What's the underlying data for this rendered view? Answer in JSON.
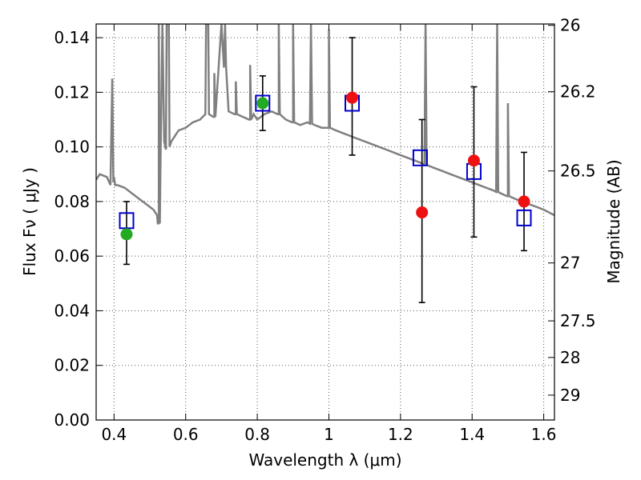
{
  "chart_data": {
    "type": "scatter",
    "xlabel": "Wavelength  λ (μm)",
    "ylabel": "Flux  Fν  ( μJy )",
    "ylabel_right": "Magnitude (AB)",
    "xlim": [
      0.35,
      1.63
    ],
    "ylim": [
      0.0,
      0.145
    ],
    "grid": true,
    "x_ticks": [
      0.4,
      0.6,
      0.8,
      1.0,
      1.2,
      1.4,
      1.6
    ],
    "x_tick_labels": [
      "0.4",
      "0.6",
      "0.8",
      "1",
      "1.2",
      "1.4",
      "1.6"
    ],
    "y_ticks": [
      0.0,
      0.02,
      0.04,
      0.06,
      0.08,
      0.1,
      0.12,
      0.14
    ],
    "y_tick_labels": [
      "0.00",
      "0.02",
      "0.04",
      "0.06",
      "0.08",
      "0.10",
      "0.12",
      "0.14"
    ],
    "right_ticks": [
      {
        "label": "26",
        "flux": 0.1445
      },
      {
        "label": "26.2",
        "flux": 0.1202
      },
      {
        "label": "26.5",
        "flux": 0.0912
      },
      {
        "label": "27",
        "flux": 0.0575
      },
      {
        "label": "27.5",
        "flux": 0.0363
      },
      {
        "label": "28",
        "flux": 0.0229
      },
      {
        "label": "29",
        "flux": 0.0091
      }
    ],
    "model_spectrum": {
      "color": "#808080",
      "x": [
        0.35,
        0.36,
        0.38,
        0.39,
        0.395,
        0.398,
        0.4,
        0.403,
        0.41,
        0.43,
        0.45,
        0.47,
        0.49,
        0.51,
        0.52,
        0.525,
        0.53,
        0.535,
        0.54,
        0.545,
        0.55,
        0.555,
        0.56,
        0.57,
        0.58,
        0.6,
        0.62,
        0.64,
        0.655,
        0.66,
        0.665,
        0.68,
        0.7,
        0.72,
        0.74,
        0.76,
        0.78,
        0.79,
        0.8,
        0.82,
        0.84,
        0.86,
        0.88,
        0.9,
        0.92,
        0.94,
        0.96,
        0.98,
        1.0,
        1.02,
        1.04,
        1.06,
        1.08,
        1.1,
        1.12,
        1.14,
        1.16,
        1.18,
        1.2,
        1.22,
        1.24,
        1.26,
        1.28,
        1.3,
        1.32,
        1.34,
        1.36,
        1.38,
        1.4,
        1.42,
        1.44,
        1.46,
        1.48,
        1.5,
        1.52,
        1.54,
        1.56,
        1.58,
        1.6,
        1.63
      ],
      "y": [
        0.088,
        0.09,
        0.089,
        0.086,
        0.125,
        0.087,
        0.089,
        0.086,
        0.086,
        0.085,
        0.083,
        0.081,
        0.079,
        0.077,
        0.075,
        0.072,
        0.096,
        0.145,
        0.102,
        0.099,
        0.145,
        0.1,
        0.102,
        0.104,
        0.106,
        0.107,
        0.109,
        0.11,
        0.112,
        0.145,
        0.112,
        0.111,
        0.145,
        0.113,
        0.112,
        0.111,
        0.11,
        0.112,
        0.11,
        0.112,
        0.113,
        0.112,
        0.11,
        0.109,
        0.108,
        0.109,
        0.108,
        0.107,
        0.107,
        0.106,
        0.105,
        0.104,
        0.103,
        0.102,
        0.101,
        0.1,
        0.099,
        0.098,
        0.097,
        0.096,
        0.095,
        0.094,
        0.093,
        0.092,
        0.091,
        0.09,
        0.089,
        0.088,
        0.087,
        0.086,
        0.085,
        0.084,
        0.083,
        0.082,
        0.081,
        0.08,
        0.079,
        0.078,
        0.077,
        0.075
      ],
      "emission_lines": [
        {
          "x": 0.525,
          "peak": 0.145
        },
        {
          "x": 0.55,
          "peak": 0.145
        },
        {
          "x": 0.66,
          "peak": 0.145
        },
        {
          "x": 0.68,
          "peak": 0.127
        },
        {
          "x": 0.71,
          "peak": 0.145
        },
        {
          "x": 0.74,
          "peak": 0.124
        },
        {
          "x": 0.78,
          "peak": 0.13
        },
        {
          "x": 0.86,
          "peak": 0.145
        },
        {
          "x": 0.9,
          "peak": 0.145
        },
        {
          "x": 0.95,
          "peak": 0.145
        },
        {
          "x": 1.0,
          "peak": 0.143
        },
        {
          "x": 1.27,
          "peak": 0.145
        },
        {
          "x": 1.47,
          "peak": 0.145
        },
        {
          "x": 1.5,
          "peak": 0.116
        }
      ]
    },
    "series": [
      {
        "marker": "open-square",
        "color": "#0000cc",
        "points": [
          {
            "x": 0.435,
            "y": 0.073
          },
          {
            "x": 0.815,
            "y": 0.116
          },
          {
            "x": 1.065,
            "y": 0.116
          },
          {
            "x": 1.255,
            "y": 0.096
          },
          {
            "x": 1.405,
            "y": 0.091
          },
          {
            "x": 1.545,
            "y": 0.074
          }
        ]
      },
      {
        "marker": "filled-circle",
        "color": "#22aa22",
        "points": [
          {
            "x": 0.435,
            "y": 0.068,
            "yerr_low": 0.057,
            "yerr_high": 0.08
          },
          {
            "x": 0.815,
            "y": 0.116,
            "yerr_low": 0.106,
            "yerr_high": 0.126
          }
        ]
      },
      {
        "marker": "filled-circle",
        "color": "#ee1111",
        "points": [
          {
            "x": 1.065,
            "y": 0.118,
            "yerr_low": 0.097,
            "yerr_high": 0.14
          },
          {
            "x": 1.26,
            "y": 0.076,
            "yerr_low": 0.043,
            "yerr_high": 0.11
          },
          {
            "x": 1.405,
            "y": 0.095,
            "yerr_low": 0.067,
            "yerr_high": 0.122
          },
          {
            "x": 1.545,
            "y": 0.08,
            "yerr_low": 0.062,
            "yerr_high": 0.098
          }
        ]
      }
    ]
  }
}
